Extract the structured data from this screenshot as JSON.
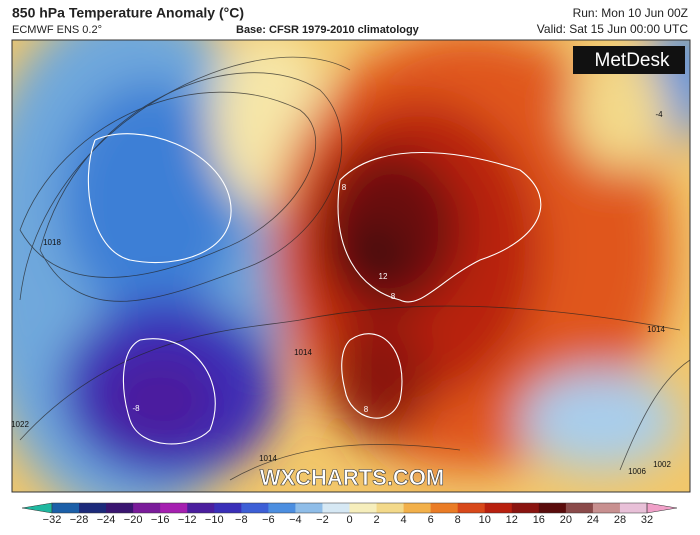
{
  "header": {
    "title": "850 hPa Temperature Anomaly (°C)",
    "model": "ECMWF ENS 0.2°",
    "base": "Base: CFSR 1979-2010 climatology",
    "run": "Run: Mon 10 Jun 00Z",
    "valid": "Valid: Sat 15 Jun 00:00 UTC"
  },
  "logo": "MetDesk",
  "watermark": "WXCHARTS.COM",
  "contour_labels": [
    "1018",
    "8",
    "12",
    "8",
    "-8",
    "8",
    "1014",
    "1014",
    "1022",
    "1014",
    "1006",
    "1002",
    "-4"
  ],
  "colorbar": {
    "ticks": [
      "−32",
      "−28",
      "−24",
      "−20",
      "−16",
      "−12",
      "−10",
      "−8",
      "−6",
      "−4",
      "−2",
      "0",
      "2",
      "4",
      "6",
      "8",
      "10",
      "12",
      "16",
      "20",
      "24",
      "28",
      "32"
    ]
  }
}
